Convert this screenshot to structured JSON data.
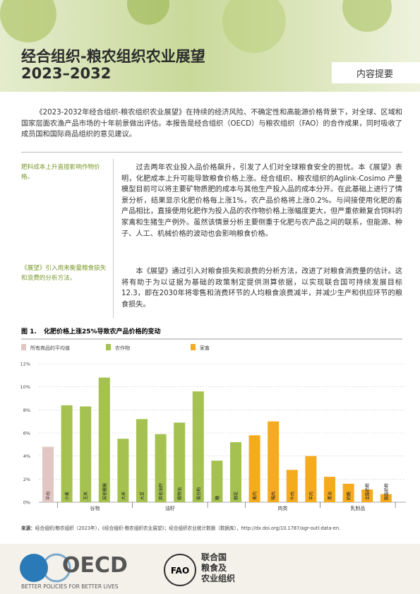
{
  "header": {
    "title": "经合组织-粮农组织农业展望",
    "years": "2023–2032",
    "tag": "内容提要"
  },
  "intro": "《2023-2032年经合组织-粮农组织农业展望》在持续的经济风险、不确定性和高能源价格背景下，对全球、区域和国家层面农渔产品市场的十年前景做出评估。本报告是经合组织（OECD）与粮农组织（FAO）的合作成果，同时吸收了成员国和国际商品组织的意见建议。",
  "sidebar": [
    "肥料成本上升直接影响作物价格。",
    "《展望》引入用来衡量粮食损失和浪费的分析方法。"
  ],
  "body": [
    "过去两年农业投入品价格飙升，引发了人们对全球粮食安全的担忧。本《展望》表明，化肥成本上升可能导致粮食价格上涨。经合组织、粮农组织的Aglink-Cosimo 产量模型目前可以将主要矿物质肥的成本与其他生产投入品的成本分开。在此基础上进行了情景分析，结果显示化肥价格每上涨1%，农产品价格将上涨0.2%。与间接使用化肥的畜产品相比，直接使用化肥作为投入品的农作物价格上涨幅度更大，但严重依赖复合饲料的家禽和生猪生产例外。虽然该情景分析主要侧重于化肥与农产品之间的联系，但能源、种子、人工、机械价格的波动也会影响粮食价格。",
    "本《展望》通过引入对粮食损失和浪费的分析方法，改进了对粮食消费量的估计。这将有助于为以证据为基础的政策制定提供测算依据，以实现联合国可持续发展目标12.3，即在2030年将零售和消费环节的人均粮食浪费减半，并减少生产和供应环节的粮食损失。"
  ],
  "figure": {
    "type": "bar",
    "label": "图 1.",
    "title": "化肥价格上涨25%导致农产品价格的变动",
    "categories": [
      "平均",
      "小麦",
      "玉米",
      "其他粗粮",
      "大米",
      "大豆",
      "其他油籽",
      "植物油",
      "蛋白粕",
      "糖",
      "棉花",
      "禽肉",
      "猪肉",
      "牛肉",
      "羊肉",
      "黄油",
      "奶酪",
      "全脂奶粉",
      "脱脂奶粉"
    ],
    "groups": [
      "谷物",
      "油籽",
      "肉类",
      "乳制品"
    ],
    "series": [
      {
        "name": "所有商品的平均值",
        "color": "#e2c6c4",
        "values": [
          4.8,
          null,
          null,
          null,
          null,
          null,
          null,
          null,
          null,
          null,
          null,
          null,
          null,
          null,
          null,
          null,
          null,
          null,
          null
        ]
      },
      {
        "name": "农作物",
        "color": "#a5c150",
        "values": [
          null,
          8.4,
          8.3,
          10.8,
          5.5,
          7.2,
          5.9,
          6.9,
          9.6,
          3.6,
          5.2,
          null,
          null,
          null,
          null,
          null,
          null,
          null,
          null
        ]
      },
      {
        "name": "家畜",
        "color": "#f5ab1e",
        "values": [
          null,
          null,
          null,
          null,
          null,
          null,
          null,
          null,
          null,
          null,
          null,
          5.8,
          7.0,
          2.8,
          4.0,
          2.2,
          1.6,
          1.1,
          0.7
        ]
      }
    ],
    "ylim": [
      0,
      12
    ],
    "yticks": [
      {
        "value": 0,
        "label": "0%"
      },
      {
        "value": 2,
        "label": "2%"
      },
      {
        "value": 4,
        "label": "4%"
      },
      {
        "value": 6,
        "label": "6%"
      },
      {
        "value": 8,
        "label": "8%"
      },
      {
        "value": 10,
        "label": "10%"
      },
      {
        "value": 12,
        "label": "12%"
      }
    ],
    "grid": true
  },
  "source": {
    "label": "来源：",
    "text": "经合组织/粮农组织（2023年），《经合组织-粮农组织农业展望》；经合组织农业统计数据（数据库），http://dx.doi.org/10.1787/agr-outl-data-en."
  },
  "footer": {
    "oecd": "OECD",
    "oecd_slogan": "BETTER POLICIES FOR BETTER LIVES",
    "fao": [
      "联合国",
      "粮食及",
      "农业组织"
    ]
  }
}
